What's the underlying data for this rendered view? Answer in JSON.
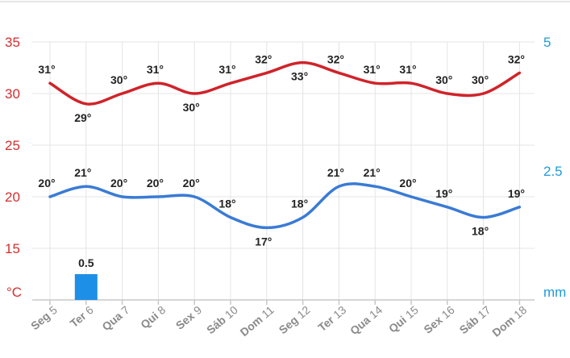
{
  "chart_data": {
    "type": "line",
    "categories": [
      {
        "day": "Seg",
        "num": "5"
      },
      {
        "day": "Ter",
        "num": "6"
      },
      {
        "day": "Qua",
        "num": "7"
      },
      {
        "day": "Qui",
        "num": "8"
      },
      {
        "day": "Sex",
        "num": "9"
      },
      {
        "day": "Sáb",
        "num": "10"
      },
      {
        "day": "Dom",
        "num": "11"
      },
      {
        "day": "Seg",
        "num": "12"
      },
      {
        "day": "Ter",
        "num": "13"
      },
      {
        "day": "Qua",
        "num": "14"
      },
      {
        "day": "Qui",
        "num": "15"
      },
      {
        "day": "Sex",
        "num": "16"
      },
      {
        "day": "Sáb",
        "num": "17"
      },
      {
        "day": "Dom",
        "num": "18"
      }
    ],
    "series": [
      {
        "axis": "left",
        "color": "#d0232a",
        "values": [
          31,
          29,
          30,
          31,
          30,
          31,
          32,
          33,
          32,
          31,
          31,
          30,
          30,
          32
        ],
        "labels": [
          "31°",
          "29°",
          "30°",
          "31°",
          "30°",
          "31°",
          "32°",
          "33°",
          "32°",
          "31°",
          "31°",
          "30°",
          "30°",
          "32°"
        ]
      },
      {
        "axis": "left",
        "color": "#3a7bd5",
        "values": [
          20,
          21,
          20,
          20,
          20,
          18,
          17,
          18,
          21,
          21,
          20,
          19,
          18,
          19
        ],
        "labels": [
          "20°",
          "21°",
          "20°",
          "20°",
          "20°",
          "18°",
          "17°",
          "18°",
          "21°",
          "21°",
          "20°",
          "19°",
          "18°",
          "19°"
        ]
      }
    ],
    "bars": {
      "axis": "right",
      "color": "#1e8fe6",
      "values": [
        0,
        0.5,
        0,
        0,
        0,
        0,
        0,
        0,
        0,
        0,
        0,
        0,
        0,
        0
      ],
      "labels": [
        "",
        "0.5",
        "",
        "",
        "",
        "",
        "",
        "",
        "",
        "",
        "",
        "",
        "",
        ""
      ]
    },
    "y_left": {
      "unit": "°C",
      "ticks": [
        "35",
        "30",
        "25",
        "20",
        "15"
      ],
      "ylim": [
        10,
        35
      ],
      "color": "#d32f2f"
    },
    "y_right": {
      "unit": "mm",
      "ticks": [
        "5",
        "2.5"
      ],
      "ylim": [
        0,
        5
      ],
      "color": "#1e9bd7"
    },
    "grid": true
  }
}
